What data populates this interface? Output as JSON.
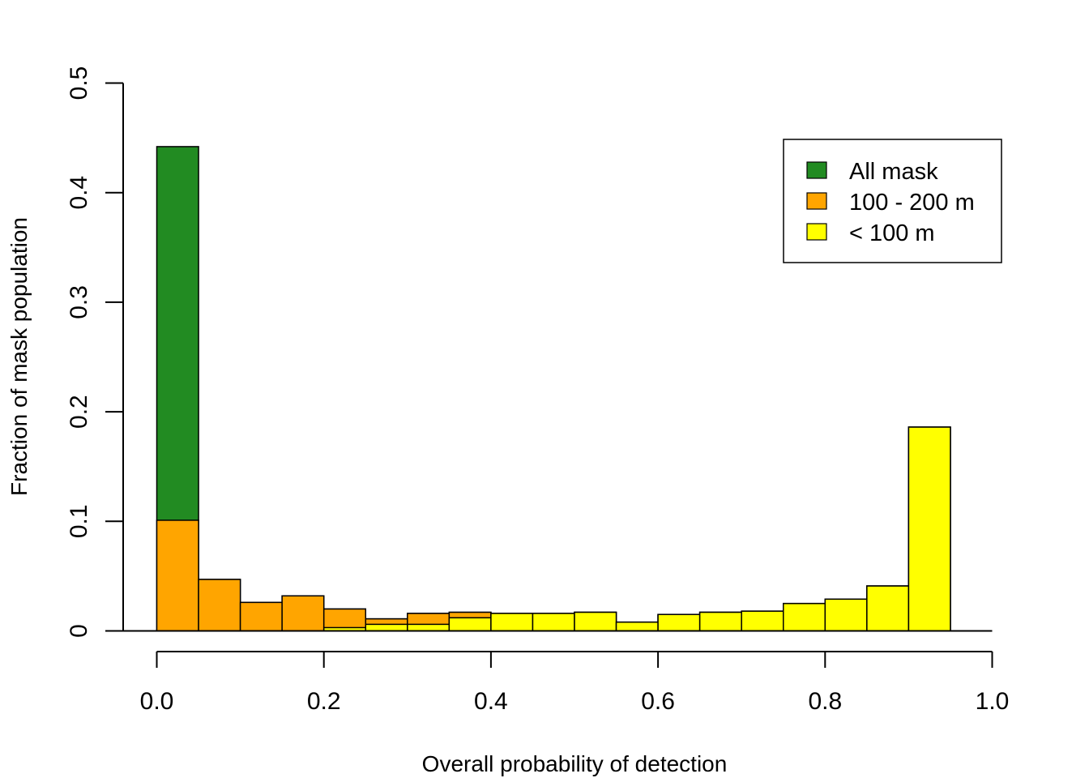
{
  "chart_data": {
    "type": "bar",
    "title": "",
    "xlabel": "Overall probability of detection",
    "ylabel": "Fraction of mask population",
    "xlim": [
      0,
      1
    ],
    "ylim": [
      0,
      0.5
    ],
    "x_ticks": [
      "0.0",
      "0.2",
      "0.4",
      "0.6",
      "0.8",
      "1.0"
    ],
    "y_ticks": [
      "0",
      "0.1",
      "0.2",
      "0.3",
      "0.4",
      "0.5"
    ],
    "bin_width": 0.05,
    "bin_starts": [
      0.0,
      0.05,
      0.1,
      0.15,
      0.2,
      0.25,
      0.3,
      0.35,
      0.4,
      0.45,
      0.5,
      0.55,
      0.6,
      0.65,
      0.7,
      0.75,
      0.8,
      0.85,
      0.9
    ],
    "series": [
      {
        "name": "All mask",
        "color": "#228B22",
        "values": [
          0.442,
          0.047,
          0.026,
          0.032,
          0.02,
          0.011,
          0.016,
          0.017,
          0.016,
          0.016,
          0.017,
          0.008,
          0.015,
          0.017,
          0.018,
          0.025,
          0.029,
          0.041,
          0.186
        ]
      },
      {
        "name": "100 - 200 m",
        "color": "#FFA500",
        "values": [
          0.101,
          0.047,
          0.026,
          0.032,
          0.02,
          0.011,
          0.016,
          0.017,
          0.016,
          0.016,
          0.017,
          0.008,
          0.015,
          0.017,
          0.018,
          0.025,
          0.029,
          0.041,
          0.186
        ]
      },
      {
        "name": "< 100 m",
        "color": "#FFFF00",
        "values": [
          0.0,
          0.0,
          0.0,
          0.0,
          0.003,
          0.006,
          0.006,
          0.012,
          0.016,
          0.016,
          0.017,
          0.008,
          0.015,
          0.017,
          0.018,
          0.025,
          0.029,
          0.041,
          0.186
        ]
      }
    ],
    "legend": {
      "position": "top-right",
      "entries": [
        "All mask",
        "100 - 200 m",
        "< 100 m"
      ]
    }
  }
}
